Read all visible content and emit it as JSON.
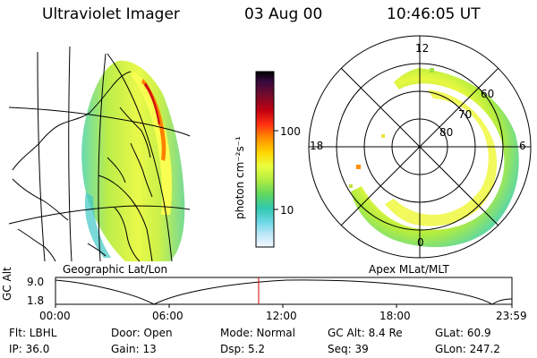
{
  "header": {
    "instrument": "Ultraviolet Imager",
    "date": "03 Aug 00",
    "time": "10:46:05 UT"
  },
  "colorbar": {
    "unit_label": "photon cm⁻²s⁻¹",
    "ticks": [
      "100",
      "10"
    ],
    "colors": [
      "#000000",
      "#2a0a3a",
      "#6a0a2a",
      "#a00010",
      "#d80010",
      "#ff4000",
      "#ff9000",
      "#ffd000",
      "#f0ff40",
      "#c8f040",
      "#90e040",
      "#40d080",
      "#20c8c0",
      "#a0e0f0",
      "#e8f4ff"
    ]
  },
  "geo_panel": {
    "label": "Geographic Lat/Lon"
  },
  "polar_panel": {
    "label": "Apex MLat/MLT",
    "mlt_labels": [
      "12",
      "18",
      "6",
      "0"
    ],
    "lat_labels": [
      "60",
      "70",
      "80"
    ]
  },
  "timeline": {
    "axis_label": "GC Alt",
    "y_labels": [
      "9.0",
      "1.8"
    ],
    "x_labels": [
      "00:00",
      "06:00",
      "12:00",
      "18:00",
      "23:59"
    ],
    "marker_time": "10:46"
  },
  "info": {
    "filter": "Flt: LBHL",
    "door": "Door: Open",
    "mode": "Mode: Normal",
    "gc_alt": "GC Alt: 8.4 Re",
    "glat": "GLat:  60.9",
    "ip": "IP: 36.0",
    "gain": "Gain: 13",
    "dsp": "Dsp:     5.2",
    "seq": "Seq: 39",
    "glon": "GLon: 247.2"
  }
}
